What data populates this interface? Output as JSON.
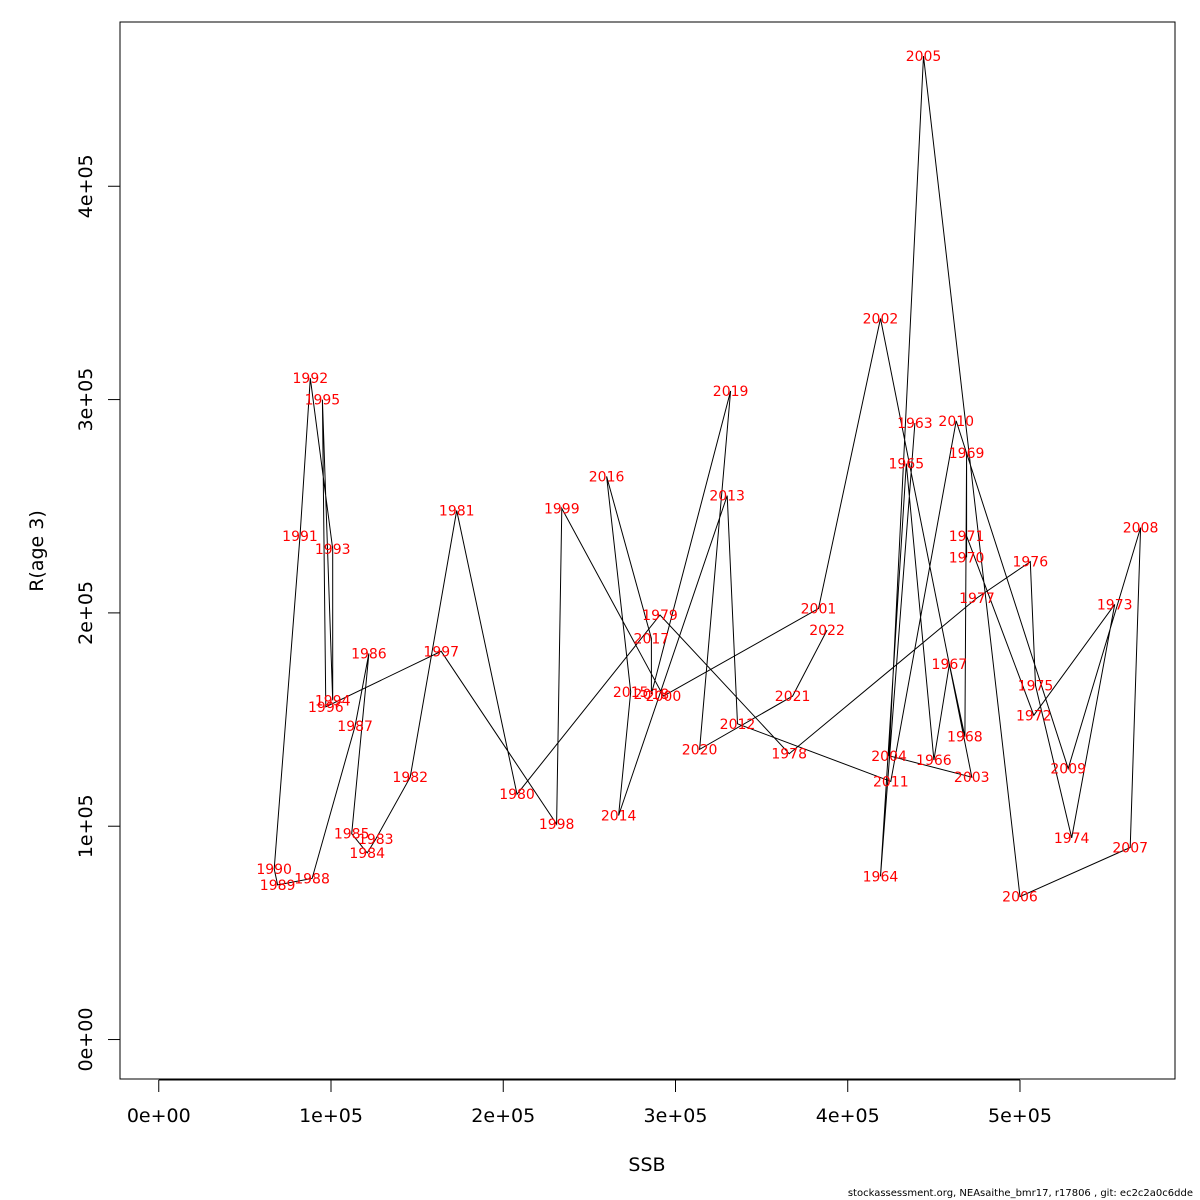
{
  "chart_data": {
    "type": "line",
    "xlabel": "SSB",
    "ylabel": "R(age 3)",
    "xlim": [
      -22500,
      590000
    ],
    "ylim": [
      -18500,
      477000
    ],
    "x_ticks": [
      {
        "value": 0,
        "label": "0e+00"
      },
      {
        "value": 100000,
        "label": "1e+05"
      },
      {
        "value": 200000,
        "label": "2e+05"
      },
      {
        "value": 300000,
        "label": "3e+05"
      },
      {
        "value": 400000,
        "label": "4e+05"
      },
      {
        "value": 500000,
        "label": "5e+05"
      }
    ],
    "y_ticks": [
      {
        "value": 0,
        "label": "0e+00"
      },
      {
        "value": 100000,
        "label": "1e+05"
      },
      {
        "value": 200000,
        "label": "2e+05"
      },
      {
        "value": 300000,
        "label": "3e+05"
      },
      {
        "value": 400000,
        "label": "4e+05"
      }
    ],
    "points": [
      {
        "label": "1963",
        "x": 439000,
        "y": 289000
      },
      {
        "label": "1964",
        "x": 419000,
        "y": 76500
      },
      {
        "label": "1965",
        "x": 434000,
        "y": 270000
      },
      {
        "label": "1966",
        "x": 450000,
        "y": 131000
      },
      {
        "label": "1967",
        "x": 459000,
        "y": 176000
      },
      {
        "label": "1968",
        "x": 468000,
        "y": 142000
      },
      {
        "label": "1969",
        "x": 469000,
        "y": 275000
      },
      {
        "label": "1970",
        "x": 469000,
        "y": 226000
      },
      {
        "label": "1971",
        "x": 469000,
        "y": 236000
      },
      {
        "label": "1972",
        "x": 508000,
        "y": 152000
      },
      {
        "label": "1973",
        "x": 555000,
        "y": 204000
      },
      {
        "label": "1974",
        "x": 530000,
        "y": 94500
      },
      {
        "label": "1975",
        "x": 509000,
        "y": 166000
      },
      {
        "label": "1976",
        "x": 506000,
        "y": 224000
      },
      {
        "label": "1977",
        "x": 475000,
        "y": 207000
      },
      {
        "label": "1978",
        "x": 366000,
        "y": 134000
      },
      {
        "label": "1979",
        "x": 291000,
        "y": 199000
      },
      {
        "label": "1980",
        "x": 208000,
        "y": 115000
      },
      {
        "label": "1981",
        "x": 173000,
        "y": 248000
      },
      {
        "label": "1982",
        "x": 146000,
        "y": 123000
      },
      {
        "label": "1983",
        "x": 126000,
        "y": 94000
      },
      {
        "label": "1984",
        "x": 121000,
        "y": 87500
      },
      {
        "label": "1985",
        "x": 112000,
        "y": 96500
      },
      {
        "label": "1986",
        "x": 122000,
        "y": 181000
      },
      {
        "label": "1987",
        "x": 114000,
        "y": 147000
      },
      {
        "label": "1988",
        "x": 89000,
        "y": 75500
      },
      {
        "label": "1989",
        "x": 69000,
        "y": 72500
      },
      {
        "label": "1990",
        "x": 67000,
        "y": 80000
      },
      {
        "label": "1991",
        "x": 82000,
        "y": 236000
      },
      {
        "label": "1992",
        "x": 88000,
        "y": 310000
      },
      {
        "label": "1993",
        "x": 101000,
        "y": 230000
      },
      {
        "label": "1994",
        "x": 101000,
        "y": 159000
      },
      {
        "label": "1995",
        "x": 95000,
        "y": 300000
      },
      {
        "label": "1996",
        "x": 97000,
        "y": 156000
      },
      {
        "label": "1997",
        "x": 164000,
        "y": 182000
      },
      {
        "label": "1998",
        "x": 231000,
        "y": 101000
      },
      {
        "label": "1999",
        "x": 234000,
        "y": 249000
      },
      {
        "label": "2000",
        "x": 293000,
        "y": 161000
      },
      {
        "label": "2001",
        "x": 383000,
        "y": 202000
      },
      {
        "label": "2002",
        "x": 419000,
        "y": 338000
      },
      {
        "label": "2003",
        "x": 472000,
        "y": 123000
      },
      {
        "label": "2004",
        "x": 424000,
        "y": 133000
      },
      {
        "label": "2005",
        "x": 444000,
        "y": 461000
      },
      {
        "label": "2006",
        "x": 500000,
        "y": 67000
      },
      {
        "label": "2007",
        "x": 564000,
        "y": 90000
      },
      {
        "label": "2008",
        "x": 570000,
        "y": 240000
      },
      {
        "label": "2009",
        "x": 528000,
        "y": 127000
      },
      {
        "label": "2010",
        "x": 463000,
        "y": 290000
      },
      {
        "label": "2011",
        "x": 425000,
        "y": 121000
      },
      {
        "label": "2012",
        "x": 336000,
        "y": 148000
      },
      {
        "label": "2013",
        "x": 330000,
        "y": 255000
      },
      {
        "label": "2014",
        "x": 267000,
        "y": 105000
      },
      {
        "label": "2015",
        "x": 274000,
        "y": 163000
      },
      {
        "label": "2016",
        "x": 260000,
        "y": 264000
      },
      {
        "label": "2017",
        "x": 286000,
        "y": 188000
      },
      {
        "label": "2018",
        "x": 286000,
        "y": 162000
      },
      {
        "label": "2019",
        "x": 332000,
        "y": 304000
      },
      {
        "label": "2020",
        "x": 314000,
        "y": 136000
      },
      {
        "label": "2021",
        "x": 368000,
        "y": 161000
      },
      {
        "label": "2022",
        "x": 388000,
        "y": 192000
      }
    ],
    "grid": false,
    "legend": "none"
  },
  "footer": "stockassessment.org, NEAsaithe_bmr17, r17806 , git: ec2c2a0c6dde",
  "colors": {
    "points": "#ff0000",
    "lines": "#000000",
    "axes": "#000000"
  }
}
